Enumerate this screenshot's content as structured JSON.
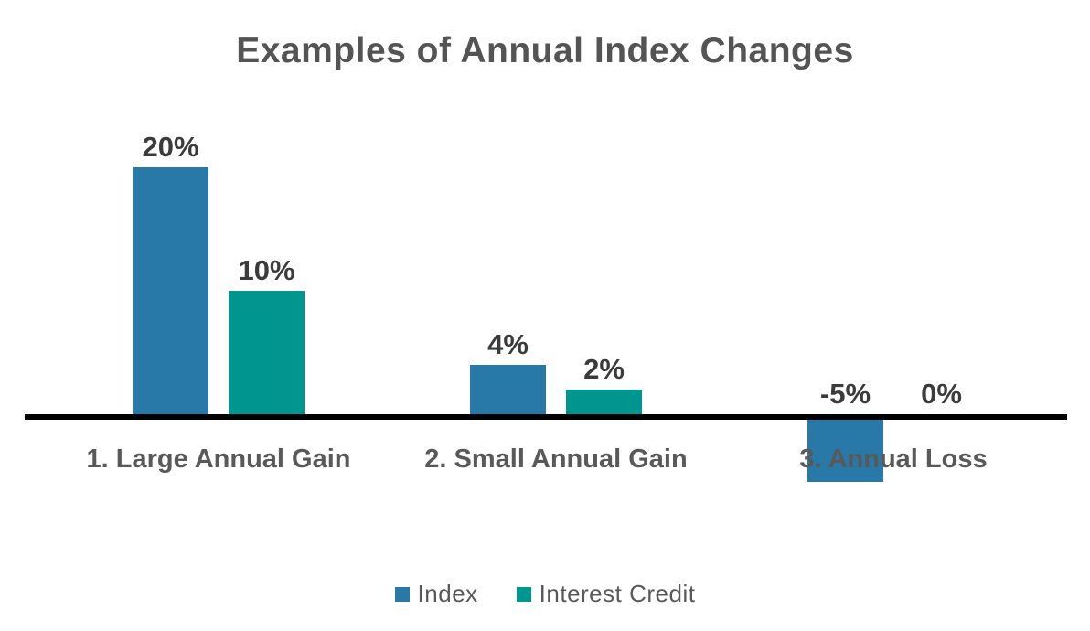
{
  "chart_data": {
    "type": "bar",
    "title": "Examples of Annual Index Changes",
    "categories": [
      "1. Large Annual Gain",
      "2. Small Annual Gain",
      "3. Annual Loss"
    ],
    "series": [
      {
        "name": "Index",
        "color": "#2878A8",
        "values": [
          20,
          4,
          -5
        ],
        "labels": [
          "20%",
          "4%",
          "-5%"
        ]
      },
      {
        "name": "Interest Credit",
        "color": "#009690",
        "values": [
          10,
          2,
          0
        ],
        "labels": [
          "10%",
          "2%",
          "0%"
        ]
      }
    ],
    "value_unit": "%",
    "ylim": [
      -7,
      22
    ],
    "grid": false,
    "legend_position": "bottom",
    "axis_color": "#000000",
    "title_color": "#545454",
    "data_label_color": "#3B3B3B",
    "category_label_color": "#595959",
    "background_color": "#ffffff"
  }
}
